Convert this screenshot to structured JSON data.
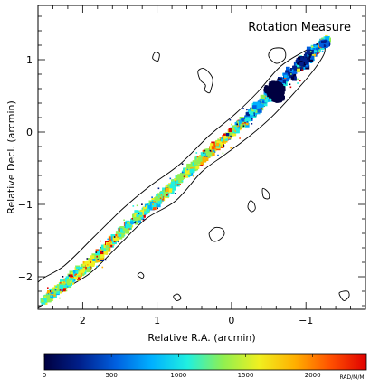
{
  "chart_data": {
    "type": "scatter",
    "title": "Rotation Measure",
    "xlabel": "Relative R.A. (arcmin)",
    "ylabel": "Relative Decl. (arcmin)",
    "xlim": [
      2.6,
      -1.8
    ],
    "ylim": [
      -2.45,
      1.75
    ],
    "x_ticks": [
      2,
      1,
      0,
      -1
    ],
    "x_tick_labels": [
      "2",
      "1",
      "0",
      "−1"
    ],
    "y_ticks": [
      1,
      0,
      -1,
      -2
    ],
    "y_tick_labels": [
      "1",
      "0",
      "−1",
      "−2"
    ],
    "grid": false,
    "colorbar": {
      "min": 0,
      "max": 2400,
      "ticks": [
        0,
        500,
        1000,
        1500,
        2000
      ],
      "tick_labels": [
        "0",
        "500",
        "1000",
        "1500",
        "2000"
      ],
      "unit": "RAD/M/M",
      "colors": [
        "#000040",
        "#00208c",
        "#0060e0",
        "#00b0ff",
        "#20f0e0",
        "#90f050",
        "#f0f020",
        "#ffb000",
        "#ff5000",
        "#e00000"
      ]
    },
    "jet": {
      "track": [
        [
          2.55,
          -2.35
        ],
        [
          2.2,
          -2.08
        ],
        [
          1.8,
          -1.72
        ],
        [
          1.4,
          -1.3
        ],
        [
          1.0,
          -0.95
        ],
        [
          0.6,
          -0.55
        ],
        [
          0.2,
          -0.2
        ],
        [
          -0.2,
          0.18
        ],
        [
          -0.55,
          0.55
        ],
        [
          -0.95,
          0.95
        ],
        [
          -1.3,
          1.3
        ]
      ],
      "width": [
        0.1,
        0.14,
        0.14,
        0.12,
        0.12,
        0.12,
        0.11,
        0.13,
        0.16,
        0.18,
        0.1
      ],
      "rm_mean": [
        1200,
        1300,
        1500,
        1250,
        1150,
        1300,
        1650,
        1100,
        800,
        400,
        1200
      ],
      "blobs": [
        {
          "x": -0.58,
          "y": 0.58,
          "rx": 0.13,
          "ry": 0.11,
          "rm": 40
        },
        {
          "x": -0.95,
          "y": 0.98,
          "rx": 0.07,
          "ry": 0.05,
          "rm": 250
        },
        {
          "x": -0.62,
          "y": 0.48,
          "rx": 0.08,
          "ry": 0.06,
          "rm": 90
        },
        {
          "x": -1.25,
          "y": 1.22,
          "rx": 0.06,
          "ry": 0.04,
          "rm": 500
        }
      ]
    },
    "contours": [
      {
        "name": "jet-envelope",
        "points": [
          [
            2.62,
            -2.42
          ],
          [
            2.3,
            -2.2
          ],
          [
            1.9,
            -1.95
          ],
          [
            1.5,
            -1.55
          ],
          [
            1.15,
            -1.2
          ],
          [
            0.75,
            -0.95
          ],
          [
            0.4,
            -0.55
          ],
          [
            0.1,
            -0.32
          ],
          [
            -0.25,
            -0.05
          ],
          [
            -0.55,
            0.22
          ],
          [
            -0.85,
            0.55
          ],
          [
            -1.1,
            0.85
          ],
          [
            -1.25,
            1.1
          ],
          [
            -1.2,
            1.22
          ],
          [
            -0.95,
            1.1
          ],
          [
            -0.65,
            0.9
          ],
          [
            -0.35,
            0.55
          ],
          [
            -0.05,
            0.25
          ],
          [
            0.3,
            -0.05
          ],
          [
            0.7,
            -0.45
          ],
          [
            1.1,
            -0.75
          ],
          [
            1.45,
            -1.05
          ],
          [
            1.85,
            -1.45
          ],
          [
            2.25,
            -1.85
          ],
          [
            2.62,
            -2.1
          ]
        ]
      },
      {
        "name": "contour-island-1",
        "points": [
          [
            -0.6,
            0.95
          ],
          [
            -0.5,
            1.05
          ],
          [
            -0.55,
            1.15
          ],
          [
            -0.7,
            1.15
          ],
          [
            -0.72,
            1.02
          ]
        ]
      },
      {
        "name": "contour-island-2",
        "points": [
          [
            0.98,
            1.0
          ],
          [
            1.0,
            0.98
          ],
          [
            1.06,
            1.02
          ],
          [
            1.03,
            1.1
          ],
          [
            0.97,
            1.08
          ]
        ]
      },
      {
        "name": "contour-island-3",
        "points": [
          [
            0.28,
            0.58
          ],
          [
            0.25,
            0.72
          ],
          [
            0.3,
            0.82
          ],
          [
            0.38,
            0.88
          ],
          [
            0.45,
            0.84
          ],
          [
            0.42,
            0.72
          ],
          [
            0.35,
            0.65
          ],
          [
            0.36,
            0.58
          ],
          [
            0.3,
            0.54
          ]
        ]
      },
      {
        "name": "contour-island-4",
        "points": [
          [
            -0.42,
            -0.78
          ],
          [
            -0.5,
            -0.84
          ],
          [
            -0.5,
            -0.92
          ],
          [
            -0.43,
            -0.9
          ]
        ]
      },
      {
        "name": "contour-island-5",
        "points": [
          [
            -0.25,
            -0.95
          ],
          [
            -0.3,
            -0.98
          ],
          [
            -0.32,
            -1.06
          ],
          [
            -0.27,
            -1.1
          ],
          [
            -0.22,
            -1.04
          ]
        ]
      },
      {
        "name": "contour-island-6",
        "points": [
          [
            0.18,
            -1.5
          ],
          [
            0.1,
            -1.42
          ],
          [
            0.12,
            -1.34
          ],
          [
            0.22,
            -1.32
          ],
          [
            0.3,
            -1.4
          ],
          [
            0.26,
            -1.5
          ]
        ]
      },
      {
        "name": "contour-island-7",
        "points": [
          [
            1.22,
            -1.94
          ],
          [
            1.18,
            -1.98
          ],
          [
            1.2,
            -2.02
          ],
          [
            1.26,
            -1.98
          ]
        ]
      },
      {
        "name": "contour-island-8",
        "points": [
          [
            0.72,
            -2.24
          ],
          [
            0.68,
            -2.3
          ],
          [
            0.74,
            -2.33
          ],
          [
            0.78,
            -2.27
          ]
        ]
      },
      {
        "name": "contour-island-9",
        "points": [
          [
            -1.45,
            -2.22
          ],
          [
            -1.48,
            -2.3
          ],
          [
            -1.52,
            -2.33
          ],
          [
            -1.58,
            -2.27
          ],
          [
            -1.56,
            -2.2
          ]
        ]
      }
    ]
  }
}
